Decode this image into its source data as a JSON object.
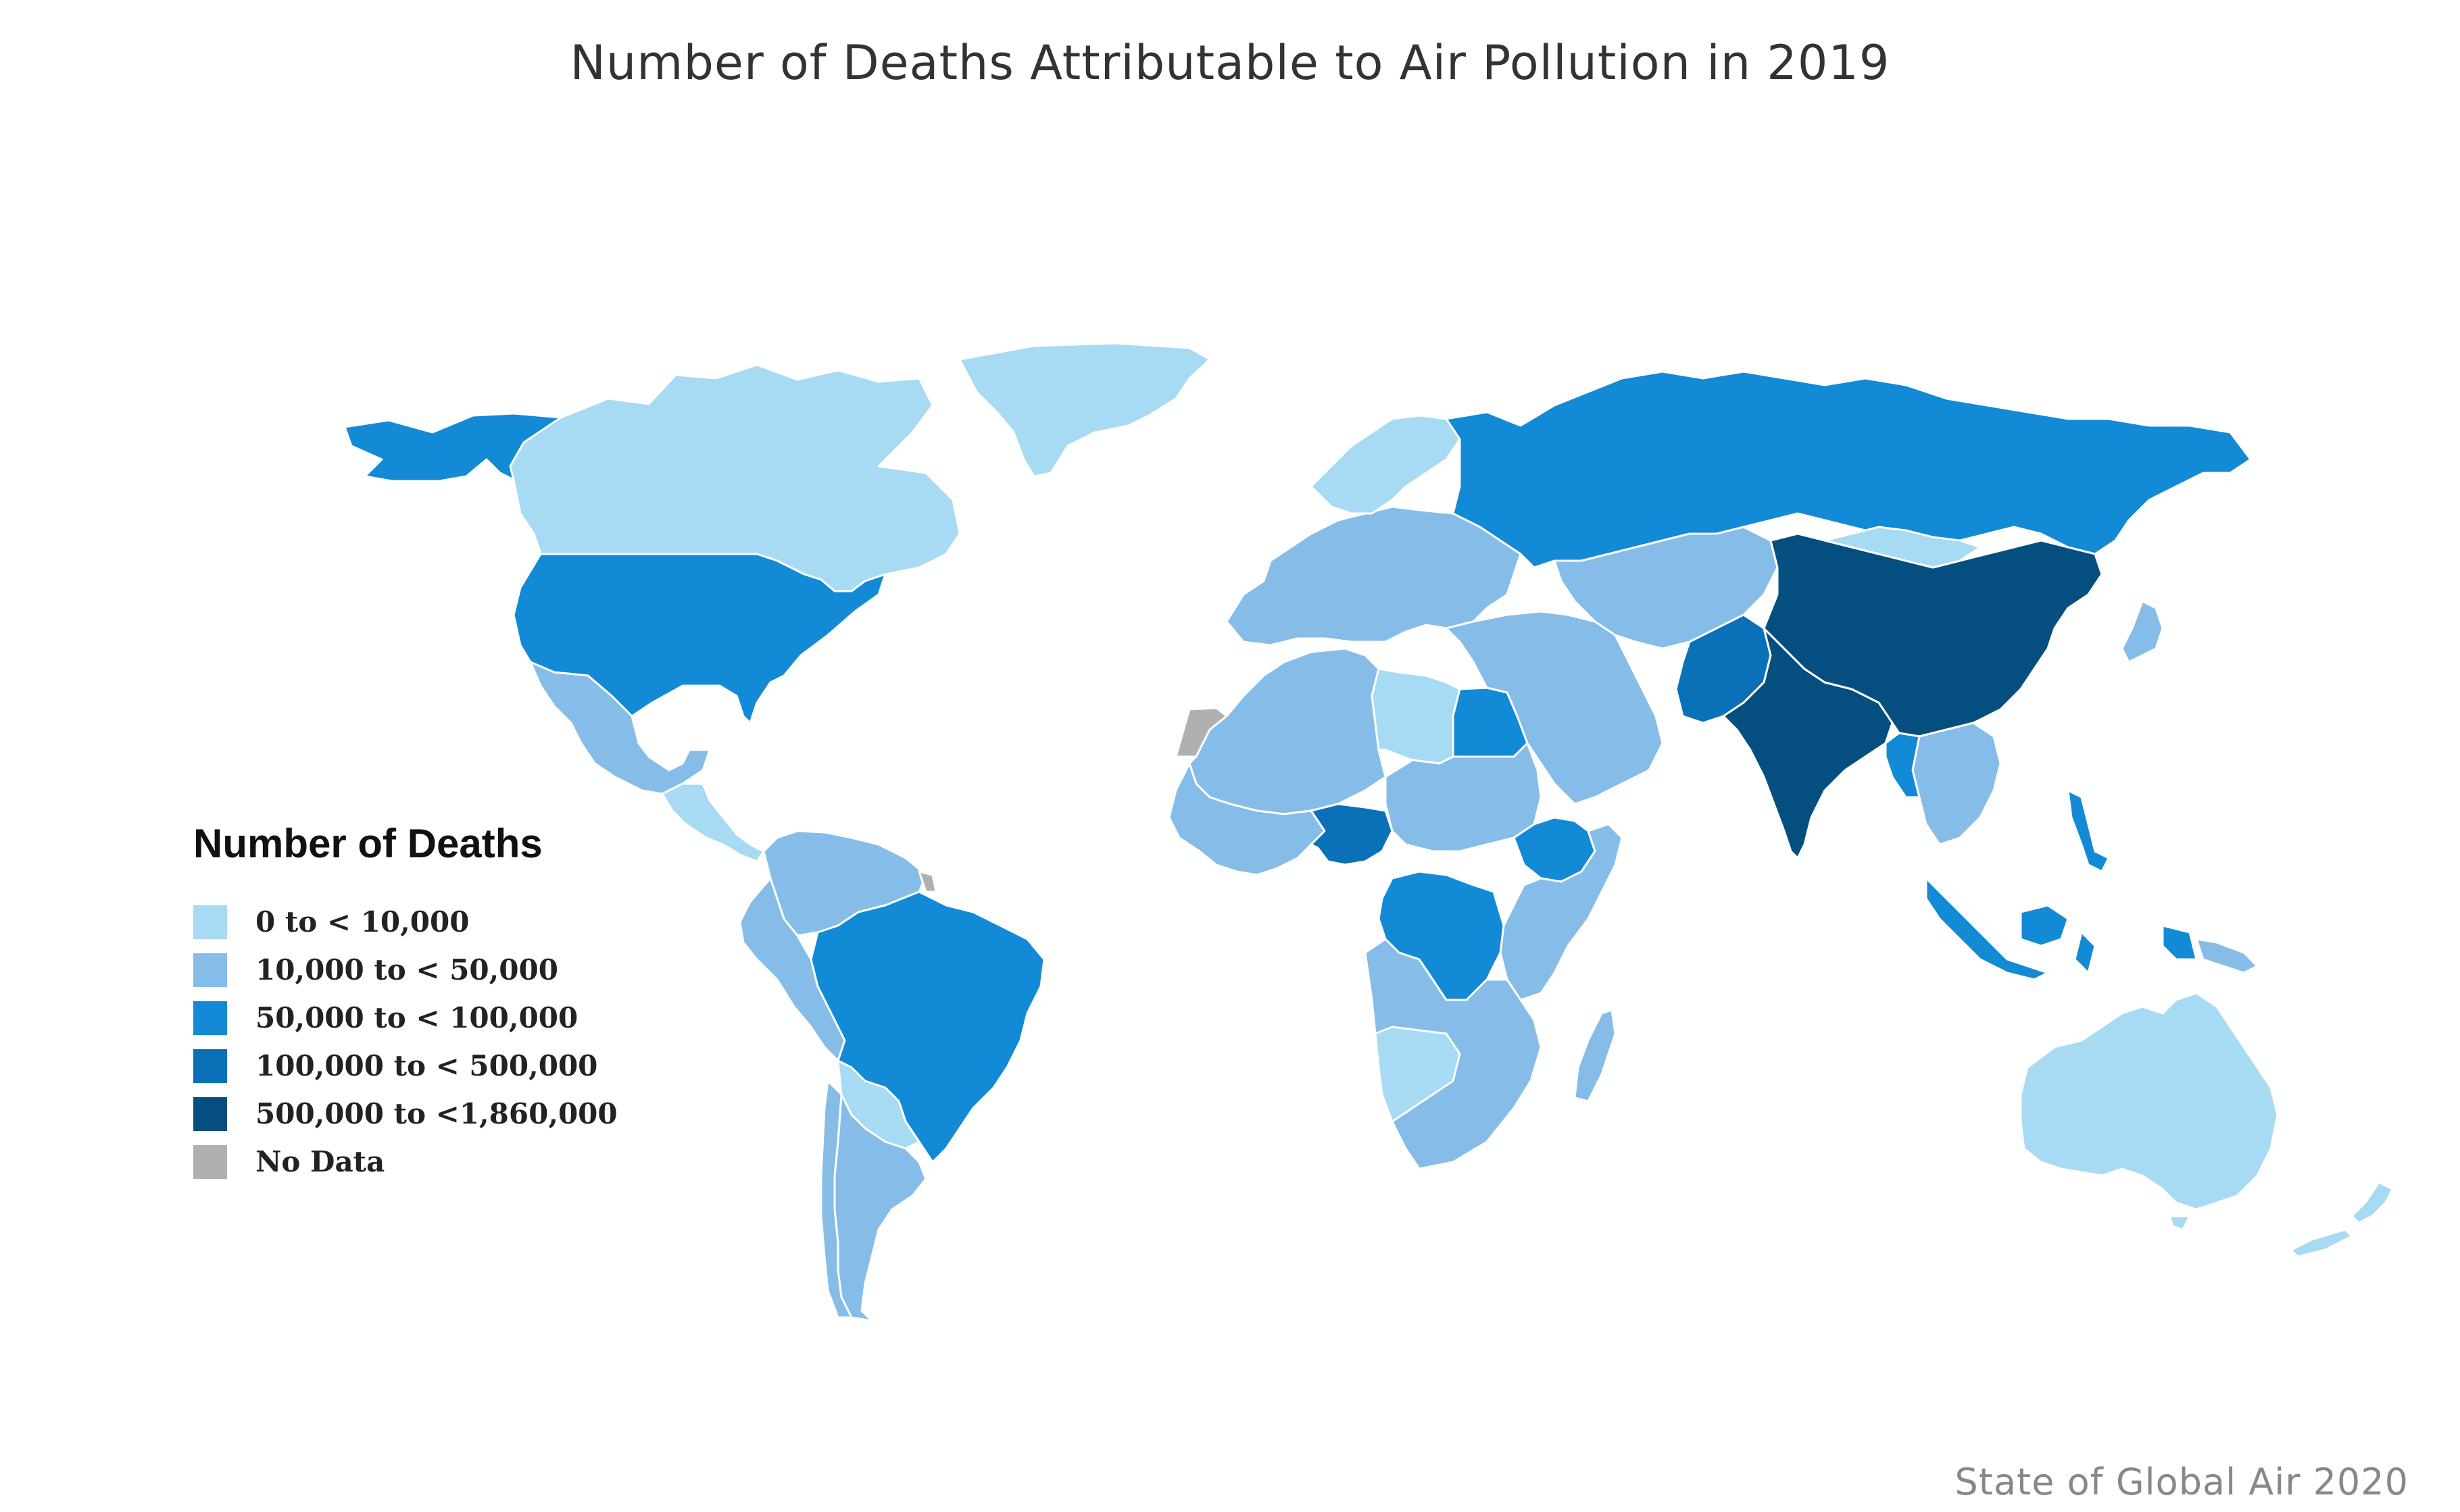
{
  "title": "Number of Deaths Attributable to Air Pollution in 2019",
  "credit": "State of Global Air 2020",
  "legend": {
    "title": "Number of Deaths",
    "items": [
      {
        "label": "0 to < 10,000",
        "color": "#a7daf3"
      },
      {
        "label": "10,000 to < 50,000",
        "color": "#86bde8"
      },
      {
        "label": "50,000 to < 100,000",
        "color": "#138ad5"
      },
      {
        "label": "100,000 to < 500,000",
        "color": "#0a70b8"
      },
      {
        "label": "500,000 to <1,860,000",
        "color": "#054f80"
      },
      {
        "label": "No Data",
        "color": "#b0b0b0"
      }
    ]
  },
  "regions": [
    {
      "name": "alaska",
      "class": 2
    },
    {
      "name": "canada",
      "class": 0
    },
    {
      "name": "greenland",
      "class": 0
    },
    {
      "name": "usa",
      "class": 2
    },
    {
      "name": "mexico",
      "class": 1
    },
    {
      "name": "central-america",
      "class": 0
    },
    {
      "name": "colombia-venezuela",
      "class": 1
    },
    {
      "name": "peru-ecuador",
      "class": 1
    },
    {
      "name": "brazil",
      "class": 2
    },
    {
      "name": "bolivia-paraguay",
      "class": 0
    },
    {
      "name": "argentina",
      "class": 1
    },
    {
      "name": "chile",
      "class": 1
    },
    {
      "name": "western-sahara",
      "class": 5
    },
    {
      "name": "french-guiana",
      "class": 5
    },
    {
      "name": "northwest-africa",
      "class": 1
    },
    {
      "name": "libya",
      "class": 0
    },
    {
      "name": "egypt",
      "class": 2
    },
    {
      "name": "sudan-chad",
      "class": 1
    },
    {
      "name": "west-africa",
      "class": 1
    },
    {
      "name": "nigeria",
      "class": 3
    },
    {
      "name": "ethiopia",
      "class": 2
    },
    {
      "name": "east-africa",
      "class": 1
    },
    {
      "name": "dr-congo",
      "class": 2
    },
    {
      "name": "southern-africa",
      "class": 1
    },
    {
      "name": "namibia-botswana",
      "class": 0
    },
    {
      "name": "madagascar",
      "class": 1
    },
    {
      "name": "europe",
      "class": 1
    },
    {
      "name": "scandinavia",
      "class": 0
    },
    {
      "name": "russia",
      "class": 2
    },
    {
      "name": "middle-east",
      "class": 1
    },
    {
      "name": "central-asia",
      "class": 1
    },
    {
      "name": "pakistan",
      "class": 3
    },
    {
      "name": "india",
      "class": 4
    },
    {
      "name": "china",
      "class": 4
    },
    {
      "name": "mongolia",
      "class": 0
    },
    {
      "name": "southeast-asia",
      "class": 1
    },
    {
      "name": "myanmar",
      "class": 2
    },
    {
      "name": "indonesia",
      "class": 2
    },
    {
      "name": "philippines",
      "class": 2
    },
    {
      "name": "japan",
      "class": 1
    },
    {
      "name": "papua-new-guinea",
      "class": 1
    },
    {
      "name": "australia",
      "class": 0
    },
    {
      "name": "new-zealand",
      "class": 0
    }
  ]
}
